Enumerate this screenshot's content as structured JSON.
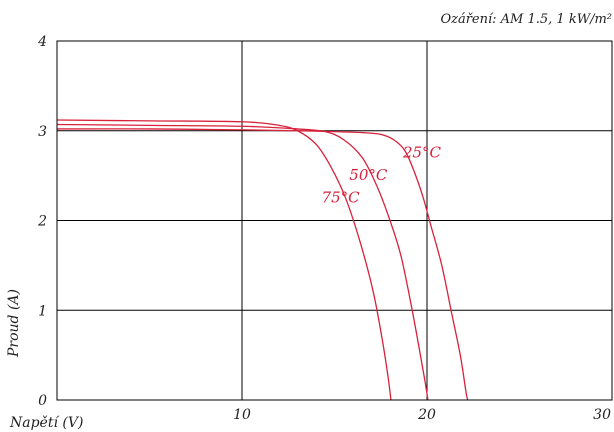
{
  "chart_data": {
    "type": "line",
    "title": "",
    "condition_note": "Ozáření: AM 1.5, 1 kW/m²",
    "xlabel": "Napětí (V)",
    "ylabel": "Proud (A)",
    "xlim": [
      0,
      30
    ],
    "ylim": [
      0,
      4
    ],
    "x_ticks": [
      {
        "value": 10,
        "label": "10"
      },
      {
        "value": 20,
        "label": "20"
      },
      {
        "value": 30,
        "label": "30"
      }
    ],
    "y_ticks": [
      {
        "value": 0,
        "label": "0"
      },
      {
        "value": 1,
        "label": "1"
      },
      {
        "value": 2,
        "label": "2"
      },
      {
        "value": 3,
        "label": "3"
      },
      {
        "value": 4,
        "label": "4"
      }
    ],
    "grid": true,
    "legend": "none",
    "line_color": "#d8213b",
    "series": [
      {
        "name": "25°C",
        "label_position": {
          "x": 18.7,
          "y": 2.7
        },
        "points": [
          [
            0,
            3.02
          ],
          [
            5,
            3.02
          ],
          [
            10,
            3.01
          ],
          [
            13,
            3.0
          ],
          [
            15,
            2.99
          ],
          [
            16.5,
            2.98
          ],
          [
            17.5,
            2.96
          ],
          [
            18.2,
            2.9
          ],
          [
            18.8,
            2.78
          ],
          [
            19.3,
            2.55
          ],
          [
            19.8,
            2.25
          ],
          [
            20.2,
            1.95
          ],
          [
            20.8,
            1.5
          ],
          [
            21.3,
            1.0
          ],
          [
            21.8,
            0.5
          ],
          [
            22.1,
            0.1
          ],
          [
            22.2,
            0
          ]
        ]
      },
      {
        "name": "50°C",
        "label_position": {
          "x": 15.8,
          "y": 2.45
        },
        "points": [
          [
            0,
            3.07
          ],
          [
            5,
            3.06
          ],
          [
            10,
            3.05
          ],
          [
            13,
            3.02
          ],
          [
            14.5,
            2.99
          ],
          [
            15.5,
            2.9
          ],
          [
            16.5,
            2.7
          ],
          [
            17.3,
            2.38
          ],
          [
            18,
            2.0
          ],
          [
            18.6,
            1.6
          ],
          [
            19.2,
            1.0
          ],
          [
            19.6,
            0.55
          ],
          [
            19.9,
            0.2
          ],
          [
            20.05,
            0
          ]
        ]
      },
      {
        "name": "75°C",
        "label_position": {
          "x": 14.3,
          "y": 2.2
        },
        "points": [
          [
            0,
            3.12
          ],
          [
            5,
            3.11
          ],
          [
            10,
            3.1
          ],
          [
            12,
            3.06
          ],
          [
            13,
            3.0
          ],
          [
            14,
            2.85
          ],
          [
            14.8,
            2.6
          ],
          [
            15.6,
            2.25
          ],
          [
            16.4,
            1.75
          ],
          [
            17.1,
            1.2
          ],
          [
            17.6,
            0.65
          ],
          [
            17.9,
            0.25
          ],
          [
            18.05,
            0
          ]
        ]
      }
    ]
  }
}
